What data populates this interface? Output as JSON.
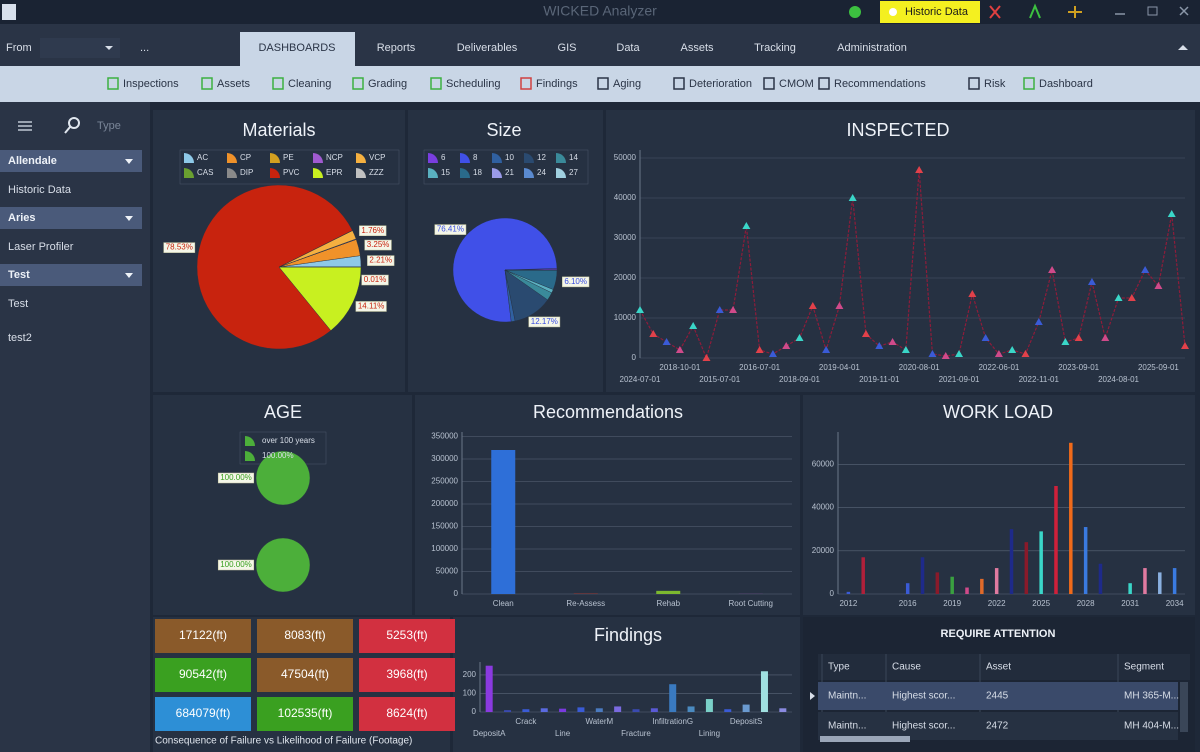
{
  "window": {
    "title": "WICKED Analyzer",
    "historic_button": "Historic Data"
  },
  "menu": {
    "from": "From",
    "more": "...",
    "tabs": [
      "DASHBOARDS",
      "Reports",
      "Deliverables",
      "GIS",
      "Data",
      "Assets",
      "Tracking",
      "Administration"
    ],
    "active_tab": 0
  },
  "toolbar": [
    "Inspections",
    "Assets",
    "Cleaning",
    "Grading",
    "Scheduling",
    "Findings",
    "Aging",
    "Deterioration",
    "CMOM",
    "Recommendations",
    "Risk",
    "Dashboard"
  ],
  "sidebar": {
    "search_placeholder": "Type",
    "groups": [
      {
        "name": "Allendale",
        "items": [
          "Historic Data"
        ]
      },
      {
        "name": "Aries",
        "items": [
          "Laser Profiler"
        ]
      },
      {
        "name": "Test",
        "items": [
          "Test",
          "test2"
        ]
      }
    ]
  },
  "chart_data": [
    {
      "type": "pie",
      "title": "Materials",
      "categories": [
        "AC",
        "CP",
        "PE",
        "NCP",
        "VCP",
        "CAS",
        "DIP",
        "PVC",
        "EPR",
        "ZZZ"
      ],
      "values": [
        2.21,
        3.25,
        0.01,
        0.1,
        1.76,
        0.02,
        0.01,
        78.53,
        14.11,
        0
      ],
      "value_labels": [
        "2.21%",
        "3.25%",
        "0.01%",
        null,
        "1.76%",
        null,
        null,
        "78.53%",
        "14.11%",
        null
      ],
      "colors": [
        "#8ec9e8",
        "#f0922a",
        "#d4a020",
        "#a05ad0",
        "#f5b040",
        "#6aa030",
        "#8a8a8a",
        "#c8230e",
        "#c8f020",
        "#c0c0c0"
      ]
    },
    {
      "type": "pie",
      "title": "Size",
      "categories": [
        "6",
        "8",
        "10",
        "12",
        "14",
        "15",
        "18",
        "21",
        "24",
        "27"
      ],
      "values": [
        0.5,
        76.41,
        1.2,
        12.17,
        2.5,
        1.1,
        6.1,
        0.01,
        0.01,
        0
      ],
      "value_labels": [
        null,
        "76.41%",
        null,
        "12.17%",
        null,
        null,
        "6.10%",
        null,
        null,
        null
      ],
      "colors": [
        "#7a3ee0",
        "#4050e8",
        "#3060a0",
        "#2a4a70",
        "#3a8a9a",
        "#5ab0c0",
        "#2a6a8a",
        "#9a9ae8",
        "#5a8ad0",
        "#a0d0e0"
      ]
    },
    {
      "type": "line",
      "title": "INSPECTED",
      "categories": [
        "2024-07-01",
        null,
        null,
        "2018-10-01",
        null,
        null,
        "2015-07-01",
        null,
        null,
        "2016-07-01",
        null,
        null,
        "2018-09-01",
        null,
        null,
        "2019-04-01",
        null,
        null,
        "2019-11-01",
        null,
        null,
        "2020-08-01",
        null,
        null,
        "2021-09-01",
        null,
        null,
        "2022-06-01",
        null,
        null,
        "2022-11-01",
        null,
        null,
        "2023-09-01",
        null,
        null,
        "2024-08-01",
        null,
        null,
        "2025-09-01",
        null,
        null
      ],
      "series": [
        {
          "name": "Inspected",
          "color": "#8e1c3a",
          "values": [
            12000,
            6000,
            4000,
            2000,
            8000,
            0,
            12000,
            12000,
            33000,
            2000,
            1000,
            3000,
            5000,
            13000,
            2000,
            13000,
            40000,
            6000,
            3000,
            4000,
            2000,
            47000,
            1000,
            500,
            1000,
            16000,
            5000,
            1000,
            2000,
            1000,
            9000,
            22000,
            4000,
            5000,
            19000,
            5000,
            15000,
            15000,
            22000,
            18000,
            36000,
            3000
          ]
        }
      ],
      "marker_colors": [
        "#3ad6c8",
        "#e2414a",
        "#3a5bd6",
        "#d04a8a"
      ],
      "ylim": [
        0,
        52000
      ],
      "yticks": [
        0,
        10000,
        20000,
        30000,
        40000,
        50000
      ],
      "grid": true
    },
    {
      "type": "pie",
      "title": "AGE",
      "series": [
        {
          "name": "over 100 years",
          "color": "#4caf3a",
          "values": [
            100
          ],
          "value_labels": [
            "100.00%"
          ]
        },
        {
          "name": "100.00%",
          "color": "#4caf3a",
          "values": [
            100
          ],
          "value_labels": [
            "100.00%"
          ]
        }
      ]
    },
    {
      "type": "bar",
      "title": "Recommendations",
      "categories": [
        "Clean",
        "Re-Assess",
        "Rehab",
        "Root Cutting"
      ],
      "values": [
        320000,
        800,
        7000,
        300
      ],
      "colors": [
        "#2e6fd8",
        "#c0392b",
        "#7cb82f",
        "#8e44ad"
      ],
      "ylim": [
        0,
        360000
      ],
      "yticks": [
        0,
        50000,
        100000,
        150000,
        200000,
        250000,
        300000,
        350000
      ],
      "grid": true
    },
    {
      "type": "bar",
      "title": "WORK LOAD",
      "x": [
        2012,
        2013,
        2014,
        2015,
        2016,
        2017,
        2018,
        2019,
        2020,
        2021,
        2022,
        2023,
        2024,
        2025,
        2026,
        2027,
        2028,
        2029,
        2030,
        2031,
        2032,
        2033,
        2034
      ],
      "values": [
        1000,
        17000,
        0,
        0,
        5000,
        17000,
        10000,
        8000,
        3000,
        7000,
        12000,
        30000,
        24000,
        29000,
        50000,
        70000,
        31000,
        14000,
        0,
        5000,
        12000,
        10000,
        12000
      ],
      "colors": [
        "#3a5bd6",
        "#b0203a",
        "#555555",
        "#555555",
        "#3a5bd6",
        "#1e2a8a",
        "#8a1a2a",
        "#3aa040",
        "#d04a8a",
        "#e06a2a",
        "#e07aa0",
        "#1e2a8a",
        "#8a1a2a",
        "#3ad6c8",
        "#d0203a",
        "#f06a1a",
        "#3a7ae0",
        "#1e2a8a",
        "#555555",
        "#3ad6c8",
        "#e07aa0",
        "#8ab0e0",
        "#3a7ae0"
      ],
      "xlim": [
        2011.3,
        2034.7
      ],
      "xticks": [
        2012,
        2016,
        2019,
        2022,
        2025,
        2028,
        2031,
        2034
      ],
      "ylim": [
        0,
        75000
      ],
      "yticks": [
        0,
        20000,
        40000,
        60000
      ],
      "grid": true
    },
    {
      "type": "bar",
      "title": "Findings",
      "categories": [
        "DepositA",
        null,
        "Crack",
        null,
        "Line",
        null,
        "WaterM",
        null,
        "Fracture",
        null,
        "InfiltrationG",
        null,
        "Lining",
        null,
        "DepositS",
        null,
        null
      ],
      "values": [
        250,
        10,
        15,
        20,
        18,
        25,
        20,
        30,
        15,
        20,
        150,
        30,
        70,
        15,
        40,
        220,
        20
      ],
      "colors": [
        "#8a3ae0",
        "#3a4ab0",
        "#3a5bd6",
        "#5a6ae0",
        "#7a3ae0",
        "#3a5bd6",
        "#4a7ac0",
        "#7a6ae0",
        "#3a4ab0",
        "#5a5ad6",
        "#3a7ac0",
        "#4a8ac0",
        "#7ad0c8",
        "#3a5bd6",
        "#6a9ad0",
        "#a0e0e0",
        "#8a8ae0"
      ],
      "ylim": [
        0,
        270
      ],
      "yticks": [
        0,
        100,
        200
      ],
      "grid": true
    }
  ],
  "kpi_tiles": {
    "cells": [
      "17122(ft)",
      "8083(ft)",
      "5253(ft)",
      "90542(ft)",
      "47504(ft)",
      "3968(ft)",
      "684079(ft)",
      "102535(ft)",
      "8624(ft)"
    ],
    "colors": [
      "#8a5a2a",
      "#8a5a2a",
      "#d23040",
      "#3aa020",
      "#8a5a2a",
      "#d23040",
      "#2d8fd6",
      "#3aa020",
      "#d23040"
    ],
    "caption": "Consequence of Failure vs Likelihood of Failure (Footage)"
  },
  "attention_table": {
    "title": "REQUIRE ATTENTION",
    "columns": [
      "Type",
      "Cause",
      "Asset",
      "Segment"
    ],
    "rows": [
      [
        "Maintn...",
        "Highest scor...",
        "2445",
        "MH 365-M..."
      ],
      [
        "Maintn...",
        "Highest scor...",
        "2472",
        "MH 404-M..."
      ]
    ]
  }
}
